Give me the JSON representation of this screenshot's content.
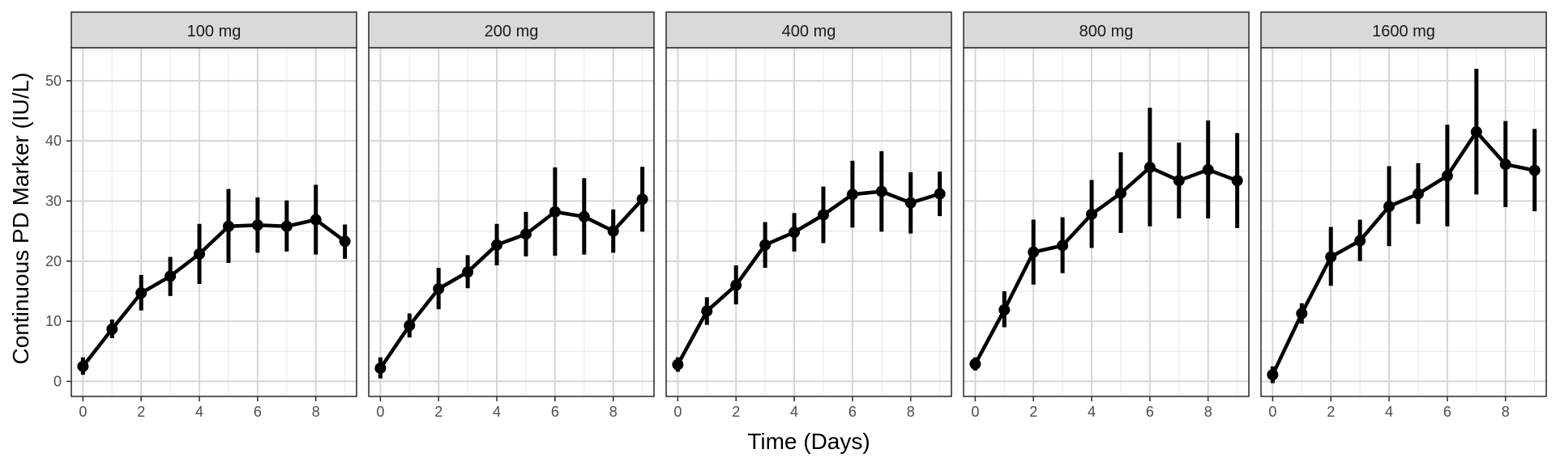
{
  "chart_data": {
    "type": "line",
    "title": "",
    "xlabel": "Time (Days)",
    "ylabel": "Continuous PD Marker (IU/L)",
    "xlim": [
      -0.4,
      9.4
    ],
    "ylim": [
      -2.5,
      55.5
    ],
    "x_ticks": [
      0,
      2,
      4,
      6,
      8
    ],
    "y_ticks": [
      0,
      10,
      20,
      30,
      40,
      50
    ],
    "grid": true,
    "legend": "none",
    "colors": {
      "line": "#000000",
      "strip_fill": "#d9d9d9",
      "panel_border": "#333333",
      "grid_major": "#d6d6d6",
      "grid_minor": "#ebebeb"
    },
    "panels": [
      {
        "label": "100 mg",
        "x": [
          0,
          1,
          2,
          3,
          4,
          5,
          6,
          7,
          8,
          9
        ],
        "y": [
          2.5,
          8.7,
          14.7,
          17.5,
          21.2,
          25.8,
          26.0,
          25.8,
          26.9,
          23.3
        ],
        "lower": [
          1.1,
          7.2,
          11.8,
          14.2,
          16.2,
          19.7,
          21.4,
          21.6,
          21.1,
          20.4
        ],
        "upper": [
          4.0,
          10.3,
          17.7,
          20.7,
          26.2,
          32.0,
          30.6,
          30.1,
          32.7,
          26.1
        ]
      },
      {
        "label": "200 mg",
        "x": [
          0,
          1,
          2,
          3,
          4,
          5,
          6,
          7,
          8,
          9
        ],
        "y": [
          2.2,
          9.3,
          15.4,
          18.2,
          22.7,
          24.5,
          28.2,
          27.4,
          25.0,
          30.3
        ],
        "lower": [
          0.5,
          7.3,
          12.0,
          15.5,
          19.3,
          20.8,
          20.9,
          21.1,
          21.4,
          24.9
        ],
        "upper": [
          4.0,
          11.3,
          18.9,
          21.0,
          26.2,
          28.2,
          35.6,
          33.8,
          28.6,
          35.7
        ]
      },
      {
        "label": "400 mg",
        "x": [
          0,
          1,
          2,
          3,
          4,
          5,
          6,
          7,
          8,
          9
        ],
        "y": [
          2.8,
          11.7,
          16.0,
          22.7,
          24.8,
          27.7,
          31.1,
          31.6,
          29.7,
          31.2
        ],
        "lower": [
          1.6,
          9.4,
          12.8,
          18.9,
          21.6,
          23.0,
          25.6,
          24.9,
          24.6,
          27.5
        ],
        "upper": [
          4.0,
          14.0,
          19.3,
          26.5,
          28.0,
          32.4,
          36.7,
          38.3,
          34.8,
          34.9
        ]
      },
      {
        "label": "800 mg",
        "x": [
          0,
          1,
          2,
          3,
          4,
          5,
          6,
          7,
          8,
          9
        ],
        "y": [
          2.9,
          11.9,
          21.5,
          22.6,
          27.8,
          31.3,
          35.6,
          33.4,
          35.2,
          33.4
        ],
        "lower": [
          1.8,
          9.0,
          16.1,
          18.0,
          22.2,
          24.7,
          25.8,
          27.1,
          27.1,
          25.5
        ],
        "upper": [
          4.0,
          15.0,
          26.9,
          27.3,
          33.5,
          38.1,
          45.5,
          39.7,
          43.4,
          41.3
        ]
      },
      {
        "label": "1600 mg",
        "x": [
          0,
          1,
          2,
          3,
          4,
          5,
          6,
          7,
          8,
          9
        ],
        "y": [
          1.1,
          11.3,
          20.7,
          23.4,
          29.1,
          31.2,
          34.2,
          41.5,
          36.1,
          35.1
        ],
        "lower": [
          -0.3,
          9.6,
          15.9,
          20.0,
          22.5,
          26.2,
          25.8,
          31.1,
          29.0,
          28.3
        ],
        "upper": [
          2.5,
          13.0,
          25.7,
          26.9,
          35.8,
          36.3,
          42.7,
          52.0,
          43.3,
          42.0
        ]
      }
    ]
  }
}
